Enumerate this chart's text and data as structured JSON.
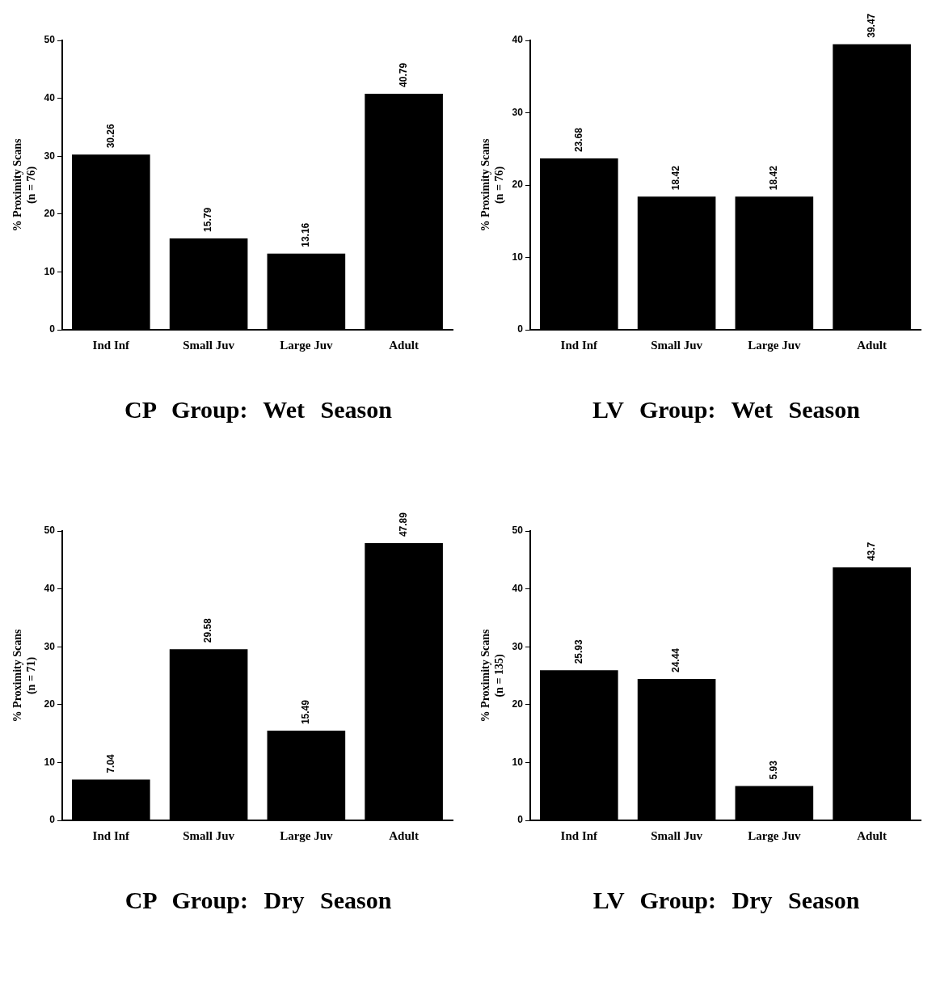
{
  "chart_data": [
    {
      "type": "bar",
      "title": "CP Group: Wet Season",
      "ylabel": "% Proximity Scans\n(n = 76)",
      "categories": [
        "Ind Inf",
        "Small Juv",
        "Large Juv",
        "Adult"
      ],
      "values": [
        30.26,
        15.79,
        13.16,
        40.79
      ],
      "color": "#000000",
      "ylim": [
        0,
        50
      ],
      "yticks": [
        0,
        10,
        20,
        30,
        40,
        50
      ],
      "grid": false,
      "legend": false,
      "data_labels": true
    },
    {
      "type": "bar",
      "title": "LV Group: Wet Season",
      "ylabel": "% Proximity Scans\n(n = 76)",
      "categories": [
        "Ind Inf",
        "Small Juv",
        "Large Juv",
        "Adult"
      ],
      "values": [
        23.68,
        18.42,
        18.42,
        39.47
      ],
      "color": "#000000",
      "ylim": [
        0,
        40
      ],
      "yticks": [
        0,
        10,
        20,
        30,
        40
      ],
      "grid": false,
      "legend": false,
      "data_labels": true
    },
    {
      "type": "bar",
      "title": "CP Group: Dry Season",
      "ylabel": "% Proximity Scans\n(n = 71)",
      "categories": [
        "Ind Inf",
        "Small Juv",
        "Large Juv",
        "Adult"
      ],
      "values": [
        7.04,
        29.58,
        15.49,
        47.89
      ],
      "color": "#000000",
      "ylim": [
        0,
        50
      ],
      "yticks": [
        0,
        10,
        20,
        30,
        40,
        50
      ],
      "grid": false,
      "legend": false,
      "data_labels": true
    },
    {
      "type": "bar",
      "title": "LV Group: Dry Season",
      "ylabel": "% Proximity Scans\n(n = 135)",
      "categories": [
        "Ind Inf",
        "Small Juv",
        "Large Juv",
        "Adult"
      ],
      "values": [
        25.93,
        24.44,
        5.93,
        43.7
      ],
      "color": "#000000",
      "ylim": [
        0,
        50
      ],
      "yticks": [
        0,
        10,
        20,
        30,
        40,
        50
      ],
      "grid": false,
      "legend": false,
      "data_labels": true
    }
  ]
}
